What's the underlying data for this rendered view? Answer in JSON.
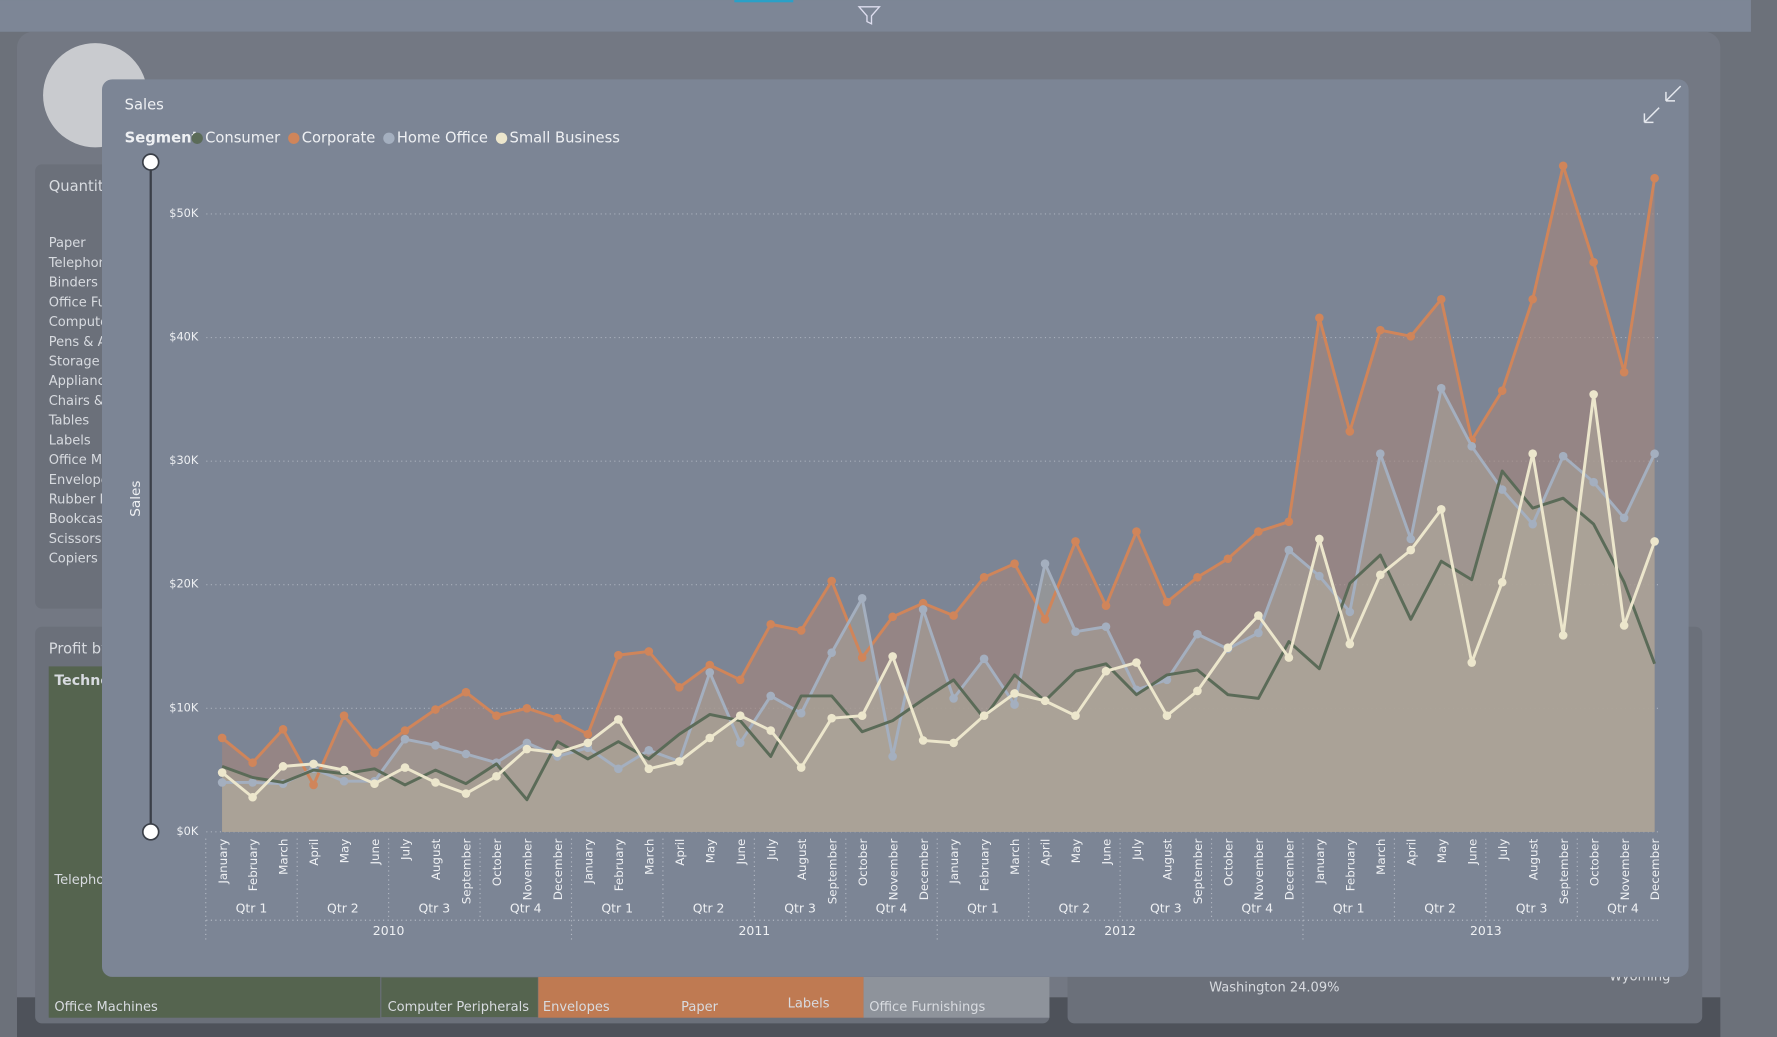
{
  "background": {
    "quantity_title": "Quantity",
    "quantity_items": [
      "Paper",
      "Telephon",
      "Binders a",
      "Office Fu",
      "Compute",
      "Pens & A",
      "Storage &",
      "Applianc",
      "Chairs &",
      "Tables",
      "Labels",
      "Office Ma",
      "Envelope",
      "Rubber B",
      "Bookcase",
      "Scissors,",
      "Copiers a"
    ],
    "profit_title": "Profit by",
    "treemap_header": "Technol",
    "treemap_sub": "Telephon",
    "treemap_items": [
      "Office Machines",
      "Computer Peripherals",
      "Envelopes",
      "Paper",
      "Labels",
      "Office Furnishings"
    ],
    "map_label": "Washington 24.09%",
    "map_legend": "Wyoming"
  },
  "chart_data": {
    "type": "area",
    "title": "Sales",
    "legend_title": "Segment",
    "y_label": "Sales",
    "categories": [
      "January",
      "February",
      "March",
      "April",
      "May",
      "June",
      "July",
      "August",
      "September",
      "October",
      "November",
      "December",
      "January",
      "February",
      "March",
      "April",
      "May",
      "June",
      "July",
      "August",
      "September",
      "October",
      "November",
      "December",
      "January",
      "February",
      "March",
      "April",
      "May",
      "June",
      "July",
      "August",
      "September",
      "October",
      "November",
      "December",
      "January",
      "February",
      "March",
      "April",
      "May",
      "June",
      "July",
      "August",
      "September",
      "October",
      "November",
      "December"
    ],
    "quarters": [
      "Qtr 1",
      "Qtr 2",
      "Qtr 3",
      "Qtr 4",
      "Qtr 1",
      "Qtr 2",
      "Qtr 3",
      "Qtr 4",
      "Qtr 1",
      "Qtr 2",
      "Qtr 3",
      "Qtr 4",
      "Qtr 1",
      "Qtr 2",
      "Qtr 3",
      "Qtr 4"
    ],
    "years": [
      "2010",
      "2011",
      "2012",
      "2013"
    ],
    "ylim": [
      0,
      54200
    ],
    "yticks": [
      {
        "value": 0,
        "label": "$0K"
      },
      {
        "value": 10000,
        "label": "$10K"
      },
      {
        "value": 20000,
        "label": "$20K"
      },
      {
        "value": 30000,
        "label": "$30K"
      },
      {
        "value": 40000,
        "label": "$40K"
      },
      {
        "value": 50000,
        "label": "$50K"
      }
    ],
    "grid": true,
    "series": [
      {
        "name": "Consumer",
        "color": "#5b6b58",
        "markers": false,
        "values": [
          5300,
          4400,
          4000,
          5000,
          4700,
          5100,
          3800,
          5000,
          3900,
          5500,
          2600,
          7300,
          5900,
          7300,
          5900,
          7900,
          9500,
          9000,
          6100,
          11000,
          11000,
          8100,
          9000,
          10700,
          12300,
          9200,
          12700,
          10600,
          13000,
          13600,
          11100,
          12700,
          13100,
          11100,
          10800,
          15400,
          13200,
          20100,
          22400,
          17200,
          21900,
          20400,
          29200,
          26200,
          27000,
          24900,
          20200,
          13600
        ]
      },
      {
        "name": "Corporate",
        "color": "#d0855a",
        "markers": true,
        "values": [
          7600,
          5600,
          8300,
          3800,
          9400,
          6400,
          8200,
          9900,
          11300,
          9400,
          10000,
          9200,
          7900,
          14300,
          14600,
          11700,
          13500,
          12300,
          16800,
          16300,
          20300,
          14100,
          17400,
          18500,
          17500,
          20600,
          21700,
          17200,
          23500,
          18300,
          24300,
          18600,
          20600,
          22100,
          24300,
          25100,
          41600,
          32400,
          40600,
          40100,
          43100,
          31700,
          35700,
          43100,
          53900,
          46100,
          37200,
          52900
        ]
      },
      {
        "name": "Home Office",
        "color": "#a4afbf",
        "markers": true,
        "values": [
          4000,
          4000,
          3900,
          5100,
          4100,
          4100,
          7500,
          7000,
          6300,
          5600,
          7200,
          6100,
          6800,
          5100,
          6600,
          5700,
          12900,
          7200,
          11000,
          9600,
          14500,
          18900,
          6100,
          18000,
          10800,
          14000,
          10300,
          21700,
          16200,
          16600,
          11500,
          12300,
          16000,
          14800,
          16100,
          22800,
          20700,
          17800,
          30600,
          23700,
          35900,
          31200,
          27700,
          24900,
          30400,
          28300,
          25400,
          30600
        ]
      },
      {
        "name": "Small Business",
        "color": "#ece6cc",
        "markers": true,
        "values": [
          4800,
          2800,
          5300,
          5500,
          5000,
          3900,
          5200,
          4000,
          3100,
          4500,
          6700,
          6400,
          7200,
          9100,
          5100,
          5700,
          7600,
          9400,
          8200,
          5200,
          9200,
          9400,
          14200,
          7400,
          7200,
          9400,
          11200,
          10600,
          9400,
          13000,
          13700,
          9400,
          11400,
          14900,
          17500,
          14100,
          23700,
          15200,
          20800,
          22800,
          26100,
          13700,
          20200,
          30600,
          15900,
          35400,
          16700,
          23500
        ]
      }
    ]
  }
}
